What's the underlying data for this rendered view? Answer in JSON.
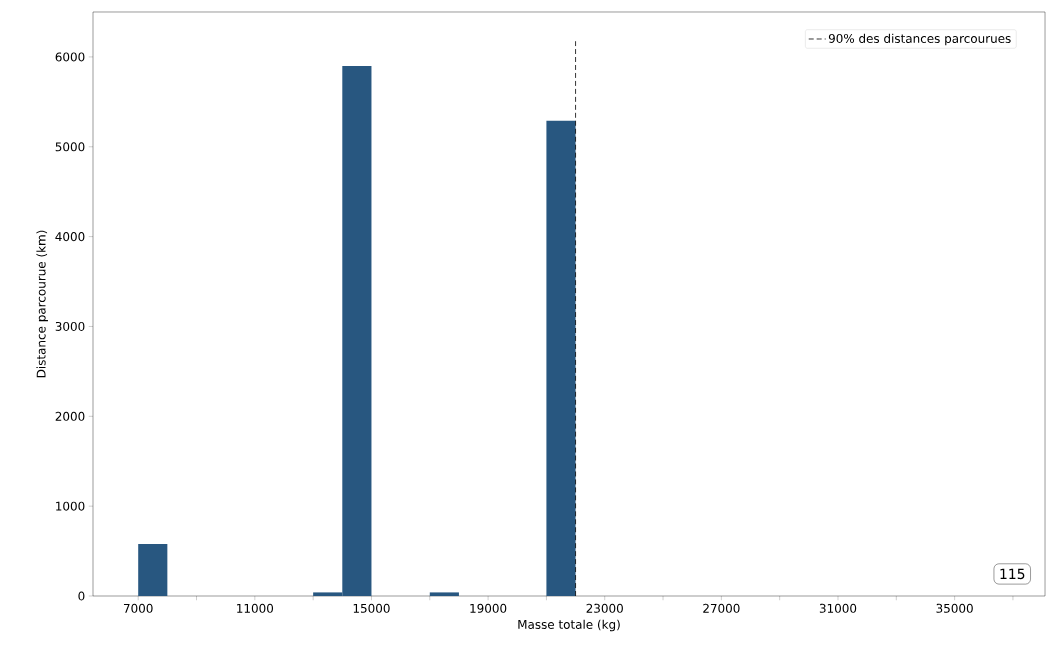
{
  "chart_data": {
    "type": "histogram",
    "xlabel": "Masse totale (kg)",
    "ylabel": "Distance parcourue (km)",
    "bins": [
      7000,
      8000,
      9000,
      10000,
      11000,
      12000,
      13000,
      14000,
      15000,
      16000,
      17000,
      18000,
      19000,
      20000,
      21000,
      22000
    ],
    "values": [
      580,
      0,
      0,
      0,
      0,
      0,
      40,
      5900,
      0,
      0,
      40,
      0,
      0,
      0,
      5290
    ],
    "color": "#285780",
    "xlim": [
      5450,
      38100
    ],
    "ylim": [
      0,
      6500
    ],
    "xticks": [
      7000,
      {
        "value": 9000,
        "label": null
      },
      11000,
      {
        "value": 13000,
        "label": null
      },
      15000,
      {
        "value": 17000,
        "label": null
      },
      19000,
      {
        "value": 21000,
        "label": null
      },
      23000,
      {
        "value": 25000,
        "label": null
      },
      27000,
      {
        "value": 29000,
        "label": null
      },
      31000,
      {
        "value": 33000,
        "label": null
      },
      35000,
      {
        "value": 37000,
        "label": null
      }
    ],
    "yticks": [
      0,
      1000,
      2000,
      3000,
      4000,
      5000,
      6000
    ],
    "ref_lines": [
      {
        "axis": "x",
        "value": 22000,
        "label": "90% des distances parcourues",
        "color": "#000000",
        "line_style": "dashed"
      }
    ],
    "annotations": [
      "115"
    ],
    "legend": "top right",
    "grid": false
  }
}
